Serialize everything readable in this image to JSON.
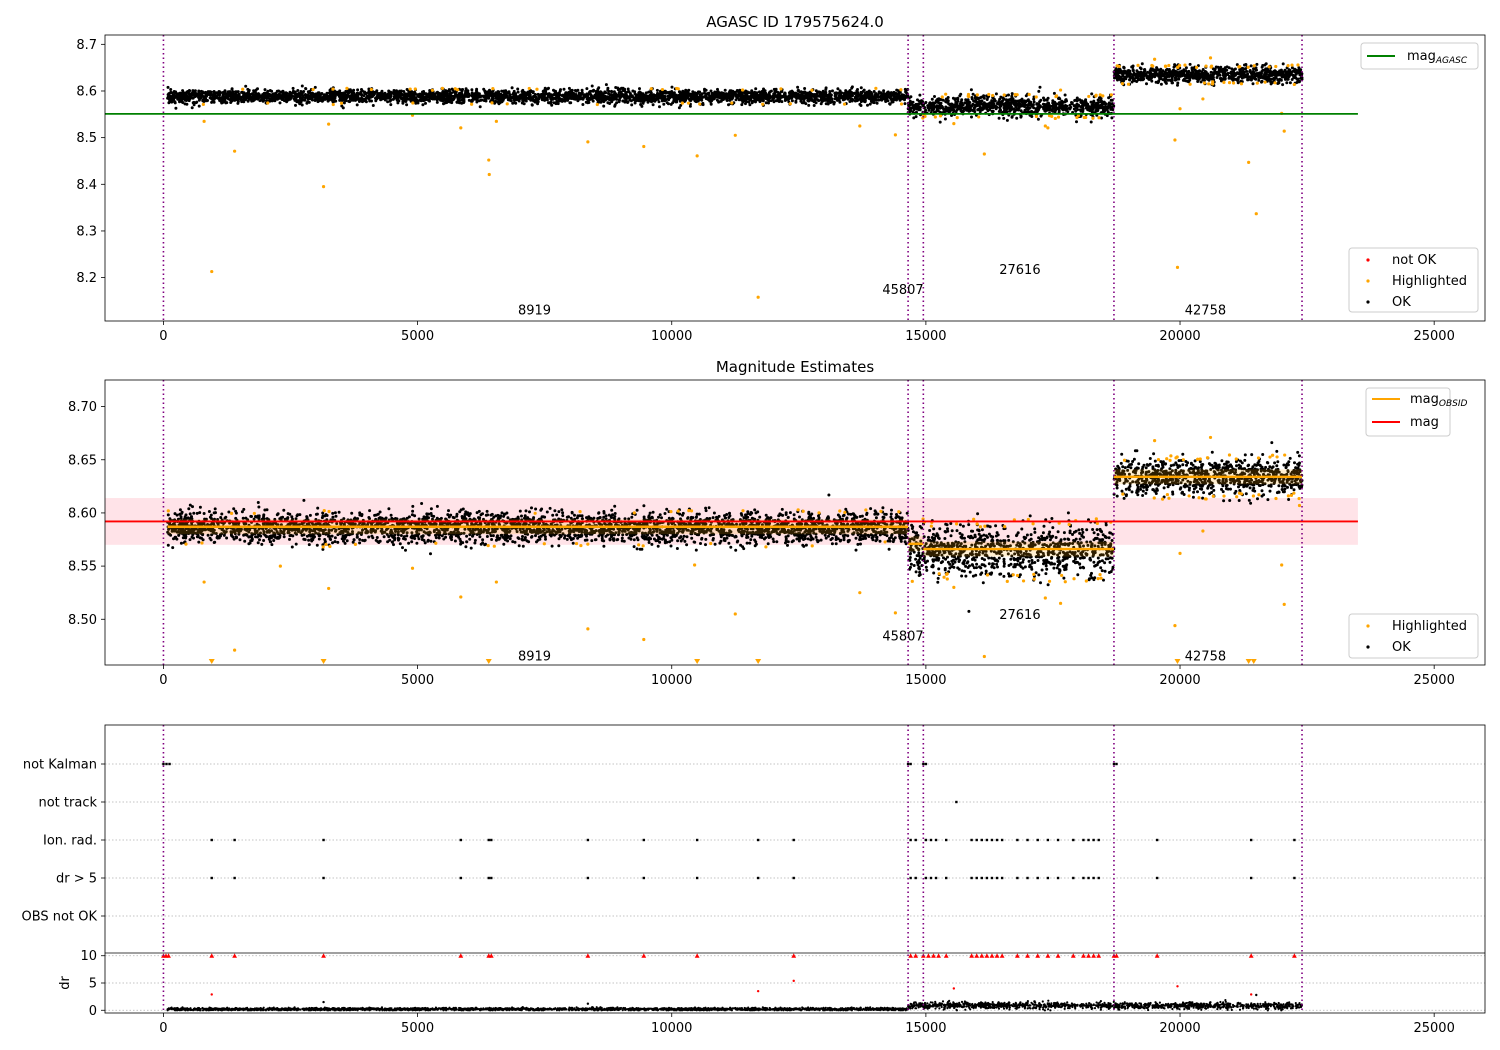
{
  "chart_data": [
    {
      "type": "scatter",
      "title": "AGASC ID 179575624.0",
      "xlim": [
        -1150,
        26000
      ],
      "ylim": [
        8.107,
        8.72
      ],
      "xticks": [
        0,
        5000,
        10000,
        15000,
        20000,
        25000
      ],
      "yticks": [
        8.2,
        8.3,
        8.4,
        8.5,
        8.6,
        8.7
      ],
      "grid": false,
      "legend_top": {
        "location": "upper-right",
        "entries": [
          {
            "label": "mag",
            "subscript": "AGASC",
            "color": "#008000",
            "marker": "line"
          }
        ]
      },
      "legend_bottom": {
        "location": "lower-right",
        "entries": [
          {
            "label": "not OK",
            "color": "#ff0000",
            "marker": "dot"
          },
          {
            "label": "Highlighted",
            "color": "#ffa500",
            "marker": "dot"
          },
          {
            "label": "OK",
            "color": "#000000",
            "marker": "dot"
          }
        ]
      },
      "hlines": [
        {
          "y": 8.551,
          "x": [
            -1150,
            23500
          ],
          "color": "#008000"
        }
      ],
      "vlines": [
        0,
        14650,
        14950,
        18700,
        22400
      ],
      "segment_labels": [
        {
          "text": "8919",
          "x": 7300,
          "y": 8.13
        },
        {
          "text": "45807",
          "x": 14550,
          "y": 8.173
        },
        {
          "text": "27616",
          "x": 16850,
          "y": 8.216
        },
        {
          "text": "42758",
          "x": 20500,
          "y": 8.13
        }
      ],
      "series": [
        {
          "name": "OK",
          "color": "#000000",
          "segments": [
            {
              "x": [
                80,
                14650
              ],
              "y_mean": 8.588,
              "y_spread": 0.012
            },
            {
              "x": [
                14650,
                18700
              ],
              "y_mean": 8.567,
              "y_spread": 0.018
            },
            {
              "x": [
                18700,
                22400
              ],
              "y_mean": 8.635,
              "y_spread": 0.014
            }
          ]
        },
        {
          "name": "Highlighted",
          "color": "#ffa500",
          "outliers": [
            {
              "x": 800,
              "y": 8.535
            },
            {
              "x": 950,
              "y": 8.213
            },
            {
              "x": 1400,
              "y": 8.471
            },
            {
              "x": 3150,
              "y": 8.395
            },
            {
              "x": 3250,
              "y": 8.529
            },
            {
              "x": 4900,
              "y": 8.548
            },
            {
              "x": 5850,
              "y": 8.521
            },
            {
              "x": 6400,
              "y": 8.452
            },
            {
              "x": 6410,
              "y": 8.421
            },
            {
              "x": 6550,
              "y": 8.535
            },
            {
              "x": 8350,
              "y": 8.491
            },
            {
              "x": 9450,
              "y": 8.481
            },
            {
              "x": 10500,
              "y": 8.461
            },
            {
              "x": 11250,
              "y": 8.505
            },
            {
              "x": 11700,
              "y": 8.158
            },
            {
              "x": 13700,
              "y": 8.525
            },
            {
              "x": 14400,
              "y": 8.506
            },
            {
              "x": 15550,
              "y": 8.53
            },
            {
              "x": 16150,
              "y": 8.465
            },
            {
              "x": 19900,
              "y": 8.495
            },
            {
              "x": 19950,
              "y": 8.222
            },
            {
              "x": 20000,
              "y": 8.562
            },
            {
              "x": 20450,
              "y": 8.583
            },
            {
              "x": 21350,
              "y": 8.447
            },
            {
              "x": 21500,
              "y": 8.337
            },
            {
              "x": 22000,
              "y": 8.552
            },
            {
              "x": 22050,
              "y": 8.514
            },
            {
              "x": 17350,
              "y": 8.525
            },
            {
              "x": 17400,
              "y": 8.521
            },
            {
              "x": 17650,
              "y": 8.602
            },
            {
              "x": 19500,
              "y": 8.668
            },
            {
              "x": 20600,
              "y": 8.671
            }
          ]
        }
      ]
    },
    {
      "type": "scatter",
      "title": "Magnitude Estimates",
      "xlim": [
        -1150,
        26000
      ],
      "ylim": [
        8.457,
        8.725
      ],
      "xticks": [
        0,
        5000,
        10000,
        15000,
        20000,
        25000
      ],
      "yticks": [
        8.5,
        8.55,
        8.6,
        8.65,
        8.7
      ],
      "grid": false,
      "legend_top": {
        "location": "upper-right",
        "entries": [
          {
            "label": "mag",
            "subscript": "OBSID",
            "color": "#ffa500",
            "marker": "line"
          },
          {
            "label": "mag",
            "color": "#ff0000",
            "marker": "line"
          }
        ]
      },
      "legend_bottom": {
        "location": "lower-right",
        "entries": [
          {
            "label": "Highlighted",
            "color": "#ffa500",
            "marker": "dot"
          },
          {
            "label": "OK",
            "color": "#000000",
            "marker": "dot"
          }
        ]
      },
      "hlines": [
        {
          "y": 8.592,
          "x": [
            -1150,
            23500
          ],
          "color": "#ff0000"
        }
      ],
      "band": {
        "y": [
          8.57,
          8.614
        ],
        "x": [
          -1150,
          23500
        ],
        "color": "#ffc0cb"
      },
      "obsid_means": [
        {
          "x": [
            80,
            14650
          ],
          "y": 8.587
        },
        {
          "x": [
            14650,
            14950
          ],
          "y": 8.571
        },
        {
          "x": [
            14950,
            18700
          ],
          "y": 8.566
        },
        {
          "x": [
            18700,
            22400
          ],
          "y": 8.634
        }
      ],
      "vlines": [
        0,
        14650,
        14950,
        18700,
        22400
      ],
      "segment_labels": [
        {
          "text": "8919",
          "x": 7300,
          "y": 8.465
        },
        {
          "text": "45807",
          "x": 14550,
          "y": 8.484
        },
        {
          "text": "27616",
          "x": 16850,
          "y": 8.504
        },
        {
          "text": "42758",
          "x": 20500,
          "y": 8.465
        }
      ],
      "series": [
        {
          "name": "OK",
          "color": "#000000",
          "segments": [
            {
              "x": [
                80,
                14650
              ],
              "y_mean": 8.586,
              "y_spread": 0.012
            },
            {
              "x": [
                14650,
                18700
              ],
              "y_mean": 8.565,
              "y_spread": 0.02
            },
            {
              "x": [
                18700,
                22400
              ],
              "y_mean": 8.634,
              "y_spread": 0.014
            }
          ]
        },
        {
          "name": "Highlighted",
          "color": "#ffa500",
          "outliers": [
            {
              "x": 800,
              "y": 8.535
            },
            {
              "x": 950,
              "y": 8.46
            },
            {
              "x": 1400,
              "y": 8.471
            },
            {
              "x": 2300,
              "y": 8.55
            },
            {
              "x": 3150,
              "y": 8.46
            },
            {
              "x": 3250,
              "y": 8.529
            },
            {
              "x": 4900,
              "y": 8.548
            },
            {
              "x": 5850,
              "y": 8.521
            },
            {
              "x": 6400,
              "y": 8.46
            },
            {
              "x": 6550,
              "y": 8.535
            },
            {
              "x": 8350,
              "y": 8.491
            },
            {
              "x": 9450,
              "y": 8.481
            },
            {
              "x": 10450,
              "y": 8.551
            },
            {
              "x": 10500,
              "y": 8.46
            },
            {
              "x": 11250,
              "y": 8.505
            },
            {
              "x": 11700,
              "y": 8.46
            },
            {
              "x": 13700,
              "y": 8.525
            },
            {
              "x": 14400,
              "y": 8.506
            },
            {
              "x": 15550,
              "y": 8.53
            },
            {
              "x": 16150,
              "y": 8.465
            },
            {
              "x": 17350,
              "y": 8.52
            },
            {
              "x": 17650,
              "y": 8.515
            },
            {
              "x": 19900,
              "y": 8.494
            },
            {
              "x": 19950,
              "y": 8.46
            },
            {
              "x": 20000,
              "y": 8.562
            },
            {
              "x": 20450,
              "y": 8.583
            },
            {
              "x": 21350,
              "y": 8.46
            },
            {
              "x": 21450,
              "y": 8.46
            },
            {
              "x": 22000,
              "y": 8.551
            },
            {
              "x": 22050,
              "y": 8.514
            },
            {
              "x": 19500,
              "y": 8.668
            },
            {
              "x": 20600,
              "y": 8.671
            },
            {
              "x": 22350,
              "y": 8.607
            }
          ]
        }
      ]
    },
    {
      "type": "scatter",
      "title": "",
      "xlim": [
        -1150,
        26000
      ],
      "xticks": [
        0,
        5000,
        10000,
        15000,
        20000,
        25000
      ],
      "flag_rows": [
        "not Kalman",
        "not track",
        "Ion. rad.",
        "dr > 5",
        "OBS not OK"
      ],
      "flags": {
        "not Kalman": [
          0,
          60,
          120,
          14650,
          14700,
          14950,
          15000,
          18700,
          18750
        ],
        "not track": [
          15600
        ],
        "Ion. rad.": [
          950,
          1400,
          3150,
          5850,
          6400,
          6450,
          8350,
          9450,
          10500,
          11700,
          12400,
          14700,
          14800,
          15000,
          15100,
          15200,
          15400,
          15900,
          16000,
          16100,
          16200,
          16300,
          16400,
          16500,
          16800,
          17000,
          17200,
          17400,
          17600,
          17900,
          18100,
          18200,
          18300,
          18400,
          19550,
          21400,
          22250
        ],
        "dr > 5": [
          950,
          1400,
          3150,
          5850,
          6400,
          6450,
          8350,
          9450,
          10500,
          11700,
          12400,
          14700,
          14800,
          15000,
          15100,
          15200,
          15400,
          15900,
          16000,
          16100,
          16200,
          16300,
          16400,
          16500,
          16800,
          17000,
          17200,
          17400,
          17600,
          17900,
          18100,
          18200,
          18300,
          18400,
          19550,
          21400,
          22250
        ],
        "OBS not OK": []
      },
      "dr_ylabel": "dr",
      "dr_yticks": [
        0,
        5,
        10
      ],
      "dr_ylim": [
        -0.5,
        10.5
      ],
      "dr_clipped_red": [
        0,
        50,
        100,
        950,
        1400,
        3150,
        5850,
        6400,
        6450,
        8350,
        9450,
        10500,
        12400,
        14700,
        14800,
        14950,
        15050,
        15150,
        15250,
        15400,
        15900,
        16000,
        16100,
        16200,
        16300,
        16400,
        16500,
        16800,
        17000,
        17200,
        17400,
        17600,
        17900,
        18100,
        18200,
        18300,
        18400,
        18700,
        18750,
        19550,
        21400,
        22250
      ],
      "dr_outliers": [
        {
          "x": 950,
          "y": 2.9,
          "color": "#ff0000"
        },
        {
          "x": 3150,
          "y": 1.5,
          "color": "#000000"
        },
        {
          "x": 8350,
          "y": 1.2,
          "color": "#000000"
        },
        {
          "x": 11700,
          "y": 3.5,
          "color": "#ff0000"
        },
        {
          "x": 12400,
          "y": 5.4,
          "color": "#ff0000"
        },
        {
          "x": 15550,
          "y": 4.0,
          "color": "#ff0000"
        },
        {
          "x": 19950,
          "y": 4.4,
          "color": "#ff0000"
        },
        {
          "x": 21400,
          "y": 2.9,
          "color": "#ff0000"
        },
        {
          "x": 21500,
          "y": 2.8,
          "color": "#000000"
        }
      ],
      "dr_segments": [
        {
          "x": [
            80,
            14650
          ],
          "y_mean": 0.2,
          "y_spread": 0.2
        },
        {
          "x": [
            14650,
            18700
          ],
          "y_mean": 0.9,
          "y_spread": 0.5
        },
        {
          "x": [
            18700,
            22400
          ],
          "y_mean": 0.8,
          "y_spread": 0.5
        }
      ],
      "vlines": [
        0,
        14650,
        14950,
        18700,
        22400
      ]
    }
  ]
}
